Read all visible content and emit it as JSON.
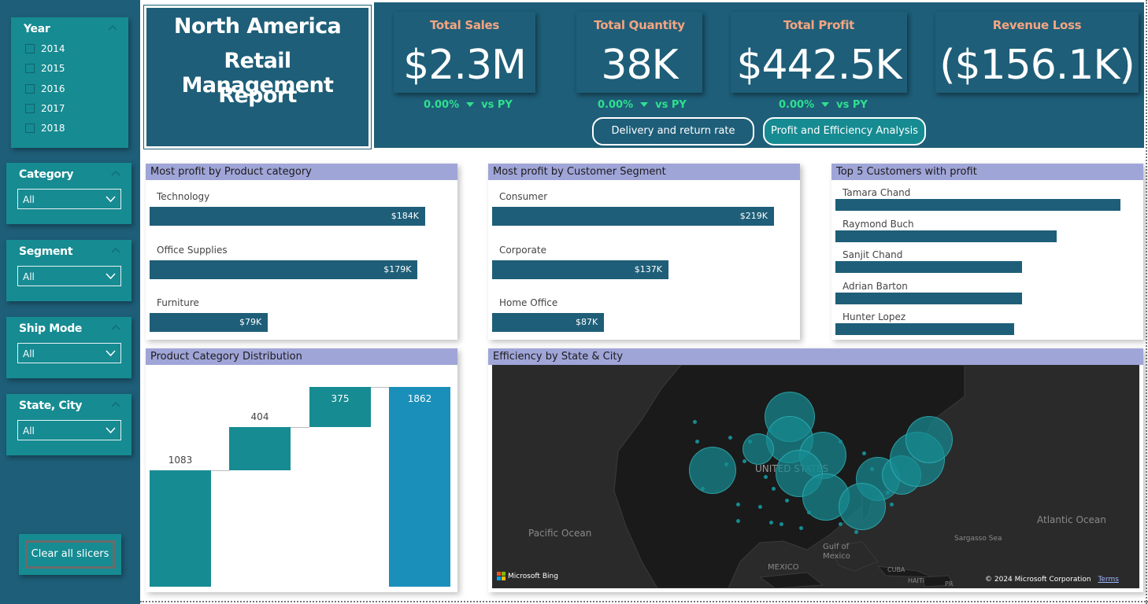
{
  "sidebar": {
    "year": {
      "title": "Year",
      "options": [
        "2014",
        "2015",
        "2016",
        "2017",
        "2018"
      ]
    },
    "category": {
      "title": "Category",
      "value": "All"
    },
    "segment": {
      "title": "Segment",
      "value": "All"
    },
    "ship_mode": {
      "title": "Ship Mode",
      "value": "All"
    },
    "state_city": {
      "title": "State, City",
      "value": "All"
    },
    "clear_label": "Clear all slicers"
  },
  "header": {
    "title_lines": [
      "North America",
      "Retail Management",
      "Report"
    ]
  },
  "kpis": [
    {
      "label": "Total Sales",
      "value": "$2.3M",
      "delta": "0.00%",
      "vs": "vs PY"
    },
    {
      "label": "Total Quantity",
      "value": "38K",
      "delta": "0.00%",
      "vs": "vs PY"
    },
    {
      "label": "Total Profit",
      "value": "$442.5K",
      "delta": "0.00%",
      "vs": "vs PY"
    },
    {
      "label": "Revenue Loss",
      "value": "($156.1K)"
    }
  ],
  "nav_buttons": [
    "Delivery and return rate",
    "Profit and Efficiency Analysis"
  ],
  "colors": {
    "primary": "#1e5e78",
    "teal": "#168b92",
    "header_band": "#a0a5d8",
    "kpi_label": "#f4a582",
    "delta_green": "#2fe08f",
    "waterfall_total": "#1a8fba"
  },
  "panels": {
    "product_category": {
      "title": "Most profit by Product category",
      "bars": [
        {
          "label": "Technology",
          "value": 184,
          "display": "$184K"
        },
        {
          "label": "Office Supplies",
          "value": 179,
          "display": "$179K"
        },
        {
          "label": "Furniture",
          "value": 79,
          "display": "$79K"
        }
      ]
    },
    "customer_segment": {
      "title": "Most profit by Customer Segment",
      "bars": [
        {
          "label": "Consumer",
          "value": 219,
          "display": "$219K"
        },
        {
          "label": "Corporate",
          "value": 137,
          "display": "$137K"
        },
        {
          "label": "Home Office",
          "value": 87,
          "display": "$87K"
        }
      ]
    },
    "top_customers": {
      "title": "Top 5 Customers with profit",
      "bars": [
        {
          "label": "Tamara Chand",
          "value": 8.98
        },
        {
          "label": "Raymond Buch",
          "value": 6.98
        },
        {
          "label": "Sanjit Chand",
          "value": 5.87
        },
        {
          "label": "Adrian Barton",
          "value": 5.87
        },
        {
          "label": "Hunter Lopez",
          "value": 5.64
        }
      ]
    },
    "distribution": {
      "title": "Product Category Distribution"
    },
    "map": {
      "title": "Efficiency by State & City",
      "labels": {
        "usa": "UNITED STATES",
        "pacific": "Pacific Ocean",
        "atlantic": "Atlantic Ocean",
        "gulf": "Gulf of\nMexico",
        "mexico": "MEXICO",
        "cuba": "CUBA",
        "haiti": "HAITI",
        "pr": "PR",
        "sargasso": "Sargasso Sea"
      },
      "bing": "Microsoft Bing",
      "copyright": "© 2024 Microsoft Corporation",
      "terms": "Terms"
    }
  },
  "chart_data": {
    "type": "bar",
    "subtype": "waterfall",
    "categories": [
      "",
      "",
      "",
      ""
    ],
    "values": [
      1083,
      404,
      375,
      1862
    ],
    "ylim": [
      0,
      1862
    ]
  }
}
